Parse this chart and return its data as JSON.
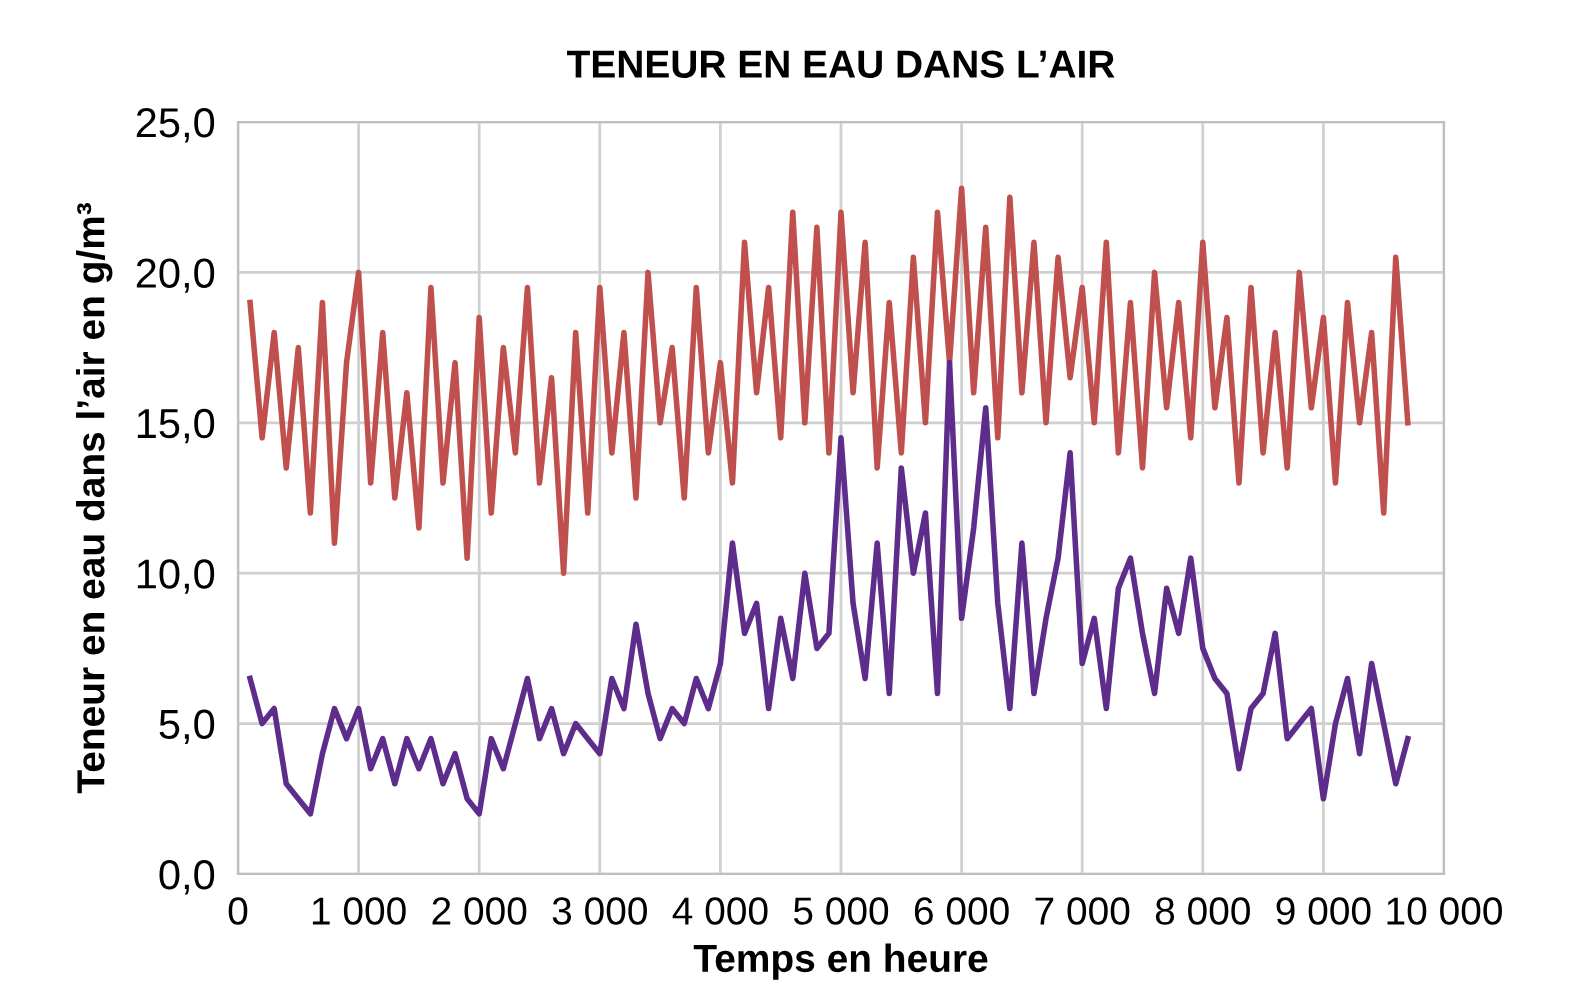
{
  "chart_data": {
    "type": "line",
    "title": "TENEUR EN EAU DANS L’AIR",
    "xlabel": "Temps en heure",
    "ylabel": "Teneur en eau dans l’air en g/m³",
    "x": [
      100,
      200,
      300,
      400,
      500,
      600,
      700,
      800,
      900,
      1000,
      1100,
      1200,
      1300,
      1400,
      1500,
      1600,
      1700,
      1800,
      1900,
      2000,
      2100,
      2200,
      2300,
      2400,
      2500,
      2600,
      2700,
      2800,
      2900,
      3000,
      3100,
      3200,
      3300,
      3400,
      3500,
      3600,
      3700,
      3800,
      3900,
      4000,
      4100,
      4200,
      4300,
      4400,
      4500,
      4600,
      4700,
      4800,
      4900,
      5000,
      5100,
      5200,
      5300,
      5400,
      5500,
      5600,
      5700,
      5800,
      5900,
      6000,
      6100,
      6200,
      6300,
      6400,
      6500,
      6600,
      6700,
      6800,
      6900,
      7000,
      7100,
      7200,
      7300,
      7400,
      7500,
      7600,
      7700,
      7800,
      7900,
      8000,
      8100,
      8200,
      8300,
      8400,
      8500,
      8600,
      8700,
      8800,
      8900,
      9000,
      9100,
      9200,
      9300,
      9400,
      9500,
      9600,
      9700
    ],
    "series": [
      {
        "color": "#c0504d",
        "values": [
          19,
          14.5,
          18,
          13.5,
          17.5,
          12,
          19,
          11,
          17,
          20,
          13,
          18,
          12.5,
          16,
          11.5,
          19.5,
          13,
          17,
          10.5,
          18.5,
          12,
          17.5,
          14,
          19.5,
          13,
          16.5,
          10,
          18,
          12,
          19.5,
          14,
          18,
          12.5,
          20,
          15,
          17.5,
          12.5,
          19.5,
          14,
          17,
          13,
          21,
          16,
          19.5,
          14.5,
          22,
          15,
          21.5,
          14,
          22,
          16,
          21,
          13.5,
          19,
          14,
          20.5,
          15,
          22,
          17,
          22.8,
          16,
          21.5,
          14.5,
          22.5,
          16,
          21,
          15,
          20.5,
          16.5,
          19.5,
          15,
          21,
          14,
          19,
          13.5,
          20,
          15.5,
          19,
          14.5,
          21,
          15.5,
          18.5,
          13,
          19.5,
          14,
          18,
          13.5,
          20,
          15.5,
          18.5,
          13,
          19,
          15,
          18,
          12,
          20.5,
          15
        ]
      },
      {
        "color": "#5e2d8c",
        "values": [
          6.5,
          5,
          5.5,
          3,
          2.5,
          2,
          4,
          5.5,
          4.5,
          5.5,
          3.5,
          4.5,
          3,
          4.5,
          3.5,
          4.5,
          3,
          4,
          2.5,
          2,
          4.5,
          3.5,
          5,
          6.5,
          4.5,
          5.5,
          4,
          5,
          4.5,
          4,
          6.5,
          5.5,
          8.3,
          6,
          4.5,
          5.5,
          5,
          6.5,
          5.5,
          7,
          11,
          8,
          9,
          5.5,
          8.5,
          6.5,
          10,
          7.5,
          8,
          14.5,
          9,
          6.5,
          11,
          6,
          13.5,
          10,
          12,
          6,
          17,
          8.5,
          11.5,
          15.5,
          9,
          5.5,
          11,
          6,
          8.5,
          10.5,
          14,
          7,
          8.5,
          5.5,
          9.5,
          10.5,
          8,
          6,
          9.5,
          8,
          10.5,
          7.5,
          6.5,
          6,
          3.5,
          5.5,
          6,
          8,
          4.5,
          5,
          5.5,
          2.5,
          5,
          6.5,
          4,
          7,
          5,
          3,
          4.5
        ]
      }
    ],
    "xlim": [
      0,
      10000
    ],
    "xticks": [
      0,
      {
        "value": 1000,
        "label": "1 000"
      },
      {
        "value": 2000,
        "label": "2 000"
      },
      {
        "value": 3000,
        "label": "3 000"
      },
      {
        "value": 4000,
        "label": "4 000"
      },
      {
        "value": 5000,
        "label": "5 000"
      },
      {
        "value": 6000,
        "label": "6 000"
      },
      {
        "value": 7000,
        "label": "7 000"
      },
      {
        "value": 8000,
        "label": "8 000"
      },
      {
        "value": 9000,
        "label": "9 000"
      },
      {
        "value": 10000,
        "label": "10 000"
      }
    ],
    "ylim": [
      0,
      25
    ],
    "yticks": [
      {
        "value": 0,
        "label": "0,0"
      },
      {
        "value": 5,
        "label": "5,0"
      },
      {
        "value": 10,
        "label": "10,0"
      },
      {
        "value": 15,
        "label": "15,0"
      },
      {
        "value": 20,
        "label": "20,0"
      },
      {
        "value": 25,
        "label": "25,0"
      }
    ],
    "grid": true
  }
}
